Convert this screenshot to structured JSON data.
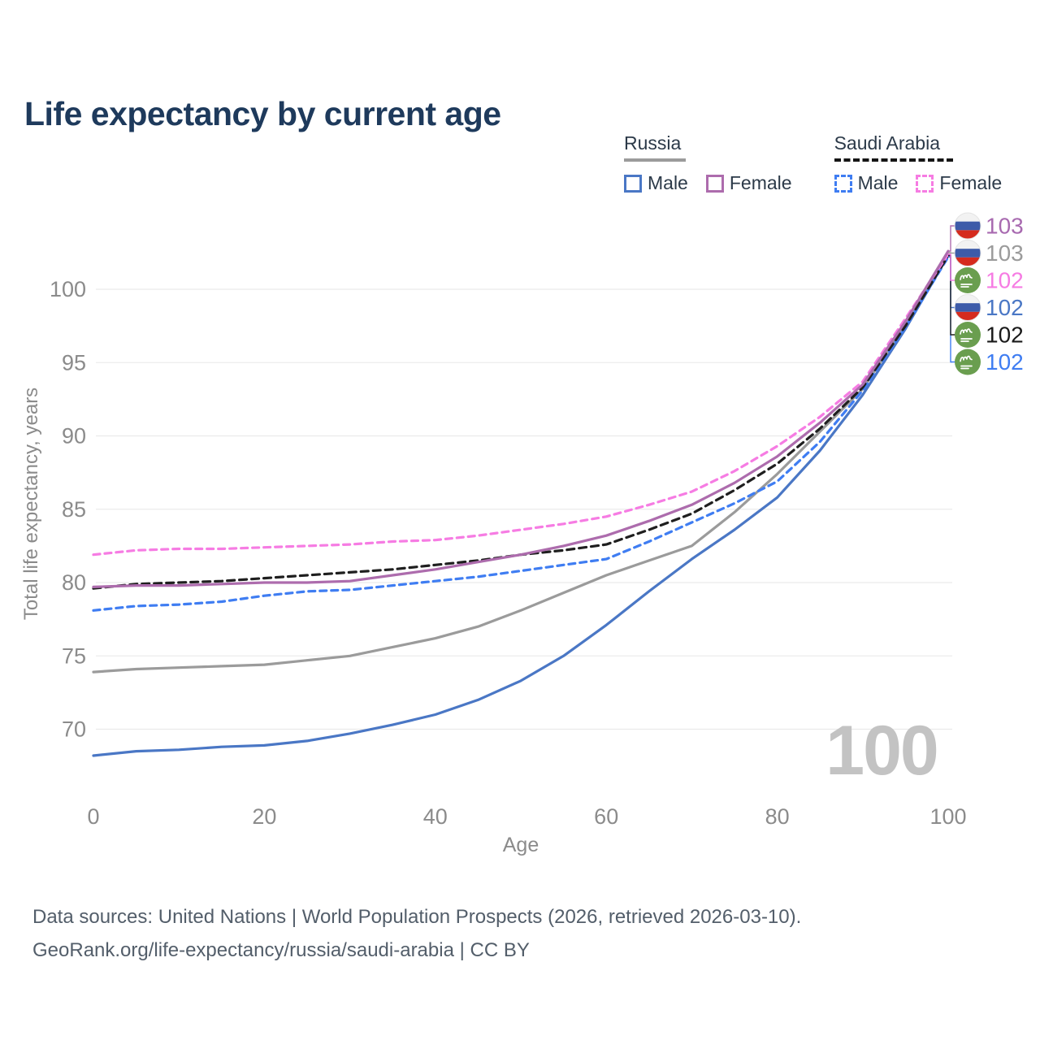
{
  "title": "Life expectancy by current age",
  "legend": {
    "groups": [
      {
        "label": "Russia",
        "line_style": "solid",
        "underline_color": "#9b9b9b",
        "items": [
          {
            "label": "Male",
            "color": "#4a77c5"
          },
          {
            "label": "Female",
            "color": "#ad6cad"
          }
        ]
      },
      {
        "label": "Saudi Arabia",
        "line_style": "dashed",
        "underline_color": "#151515",
        "items": [
          {
            "label": "Male",
            "color": "#3f7df2"
          },
          {
            "label": "Female",
            "color": "#f67ce3"
          }
        ]
      }
    ]
  },
  "chart_data": {
    "type": "line",
    "title": "Life expectancy by current age",
    "xlabel": "Age",
    "ylabel": "Total life expectancy, years",
    "x": [
      0,
      5,
      10,
      15,
      20,
      25,
      30,
      35,
      40,
      45,
      50,
      55,
      60,
      65,
      70,
      75,
      80,
      85,
      90,
      95,
      100
    ],
    "xticks": [
      0,
      20,
      40,
      60,
      80,
      100
    ],
    "yticks": [
      70,
      75,
      80,
      85,
      90,
      95,
      100
    ],
    "xlim": [
      0,
      100
    ],
    "ylim": [
      67,
      103.5
    ],
    "grid": "horizontal",
    "legend_position": "top-right",
    "watermark": "100",
    "series": [
      {
        "name": "russia-male",
        "country": "Russia",
        "group": "Male",
        "color": "#4a77c5",
        "dash": "none",
        "values": [
          68.2,
          68.5,
          68.6,
          68.8,
          68.9,
          69.2,
          69.7,
          70.3,
          71.0,
          72.0,
          73.3,
          75.0,
          77.1,
          79.4,
          81.6,
          83.6,
          85.8,
          89.0,
          92.8,
          97.3,
          102.3
        ],
        "end_label_slot": 3
      },
      {
        "name": "russia-total",
        "country": "Russia",
        "group": "All",
        "color": "#9b9b9b",
        "dash": "none",
        "values": [
          73.9,
          74.1,
          74.2,
          74.3,
          74.4,
          74.7,
          75.0,
          75.6,
          76.2,
          77.0,
          78.1,
          79.3,
          80.5,
          81.5,
          82.5,
          84.8,
          87.4,
          90.3,
          93.2,
          97.6,
          102.5
        ],
        "end_label_slot": 1
      },
      {
        "name": "russia-female",
        "country": "Russia",
        "group": "Female",
        "color": "#ad6cad",
        "dash": "none",
        "values": [
          79.7,
          79.8,
          79.8,
          79.9,
          80.0,
          80.0,
          80.1,
          80.5,
          80.9,
          81.4,
          81.9,
          82.5,
          83.2,
          84.2,
          85.3,
          86.8,
          88.6,
          90.9,
          93.5,
          97.8,
          102.6
        ],
        "end_label_slot": 0
      },
      {
        "name": "saudi-male",
        "country": "Saudi Arabia",
        "group": "Male",
        "color": "#3f7df2",
        "dash": "8 6",
        "values": [
          78.1,
          78.4,
          78.5,
          78.7,
          79.1,
          79.4,
          79.5,
          79.8,
          80.1,
          80.4,
          80.8,
          81.2,
          81.6,
          82.8,
          84.1,
          85.4,
          86.9,
          89.6,
          93.1,
          97.4,
          102.2
        ],
        "end_label_slot": 5
      },
      {
        "name": "saudi-total",
        "country": "Saudi Arabia",
        "group": "All",
        "color": "#1f1f1f",
        "dash": "9 6",
        "values": [
          79.6,
          79.9,
          80.0,
          80.1,
          80.3,
          80.5,
          80.7,
          80.9,
          81.2,
          81.5,
          81.9,
          82.2,
          82.6,
          83.6,
          84.7,
          86.3,
          88.1,
          90.5,
          93.3,
          97.5,
          102.3
        ],
        "end_label_slot": 4
      },
      {
        "name": "saudi-female",
        "country": "Saudi Arabia",
        "group": "Female",
        "color": "#f67ce3",
        "dash": "8 6",
        "values": [
          81.9,
          82.2,
          82.3,
          82.3,
          82.4,
          82.5,
          82.6,
          82.8,
          82.9,
          83.2,
          83.6,
          84.0,
          84.5,
          85.3,
          86.2,
          87.6,
          89.3,
          91.3,
          93.7,
          98.0,
          102.4
        ],
        "end_label_slot": 2
      }
    ],
    "end_labels": [
      {
        "flag": "russia",
        "value": "103",
        "color": "#a86ab0"
      },
      {
        "flag": "russia",
        "value": "103",
        "color": "#9b9b9b"
      },
      {
        "flag": "saudi",
        "value": "102",
        "color": "#f67ce3"
      },
      {
        "flag": "russia",
        "value": "102",
        "color": "#4a77c5"
      },
      {
        "flag": "saudi",
        "value": "102",
        "color": "#1a1a1a"
      },
      {
        "flag": "saudi",
        "value": "102",
        "color": "#3f7df2"
      }
    ]
  },
  "footer": {
    "line1": "Data sources: United Nations | World Population Prospects (2026, retrieved 2026-03-10).",
    "line2": "GeoRank.org/life-expectancy/russia/saudi-arabia | CC BY"
  },
  "colors": {
    "title": "#1e3a5c",
    "axis_text": "#8b8b8b",
    "gridline": "#ebebeb",
    "watermark": "#c3c3c3",
    "footer_text": "#535e6a",
    "russia_flag": [
      "#f2f2f2",
      "#3d5ba9",
      "#d52b1e"
    ],
    "saudi_flag": "#6a9e4f"
  }
}
